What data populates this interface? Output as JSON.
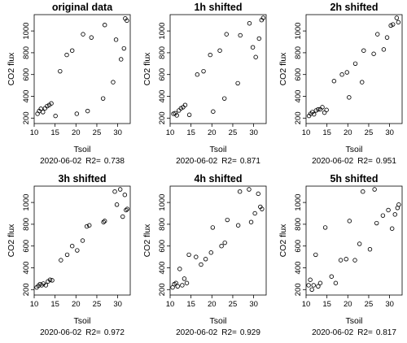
{
  "chart_data": [
    {
      "type": "scatter",
      "title": "original data",
      "xlabel": "Tsoil",
      "ylabel": "CO2 flux",
      "date": "2020-06-02",
      "r2_label": "R2=",
      "r2": "0.738",
      "xlim": [
        10,
        33
      ],
      "ylim": [
        150,
        1150
      ],
      "xticks": [
        10,
        15,
        20,
        25,
        30
      ],
      "yticks": [
        200,
        400,
        600,
        800,
        1000
      ],
      "x": [
        10.8,
        11.2,
        11.6,
        12.1,
        12.6,
        13.1,
        13.6,
        14.1,
        15.1,
        16.2,
        17.8,
        19.1,
        20.2,
        21.7,
        22.8,
        23.7,
        26.5,
        26.9,
        28.9,
        29.6,
        30.8,
        31.5,
        31.8,
        32.2
      ],
      "y": [
        240,
        265,
        285,
        255,
        290,
        310,
        320,
        335,
        220,
        630,
        780,
        820,
        240,
        970,
        265,
        940,
        380,
        1055,
        530,
        920,
        740,
        840,
        1115,
        1095
      ]
    },
    {
      "type": "scatter",
      "title": "1h shifted",
      "xlabel": "Tsoil",
      "ylabel": "CO2 flux",
      "date": "2020-06-02",
      "r2_label": "R2=",
      "r2": "0.871",
      "xlim": [
        10,
        33
      ],
      "ylim": [
        150,
        1150
      ],
      "xticks": [
        10,
        15,
        20,
        25,
        30
      ],
      "yticks": [
        200,
        400,
        600,
        800,
        1000
      ],
      "x": [
        10.8,
        11.2,
        11.6,
        12.1,
        12.6,
        13.1,
        13.6,
        14.6,
        16.5,
        18.0,
        19.6,
        20.3,
        21.9,
        23.5,
        23.0,
        26.2,
        26.8,
        29.0,
        29.8,
        30.5,
        31.3,
        31.9,
        32.3
      ],
      "y": [
        240,
        245,
        225,
        270,
        290,
        300,
        320,
        230,
        600,
        630,
        780,
        260,
        820,
        970,
        380,
        520,
        960,
        1070,
        850,
        760,
        930,
        1100,
        1120
      ]
    },
    {
      "type": "scatter",
      "title": "2h shifted",
      "xlabel": "Tsoil",
      "ylabel": "CO2 flux",
      "date": "2020-06-02",
      "r2_label": "R2=",
      "r2": "0.951",
      "xlim": [
        10,
        33
      ],
      "ylim": [
        150,
        1150
      ],
      "xticks": [
        10,
        15,
        20,
        25,
        30
      ],
      "yticks": [
        200,
        400,
        600,
        800,
        1000
      ],
      "x": [
        10.7,
        11.1,
        11.5,
        11.9,
        12.4,
        12.9,
        13.4,
        13.9,
        14.4,
        14.9,
        16.7,
        18.6,
        19.8,
        20.3,
        21.8,
        23.4,
        23.8,
        26.2,
        27.1,
        28.6,
        29.4,
        30.3,
        30.8,
        31.7,
        32.1
      ],
      "y": [
        220,
        240,
        255,
        235,
        270,
        280,
        280,
        300,
        250,
        275,
        540,
        600,
        620,
        390,
        700,
        530,
        820,
        790,
        970,
        830,
        940,
        1050,
        1060,
        1120,
        1080
      ]
    },
    {
      "type": "scatter",
      "title": "3h shifted",
      "xlabel": "Tsoil",
      "ylabel": "CO2 flux",
      "date": "2020-06-02",
      "r2_label": "R2=",
      "r2": "0.972",
      "xlim": [
        10,
        33
      ],
      "ylim": [
        150,
        1150
      ],
      "xticks": [
        10,
        15,
        20,
        25,
        30
      ],
      "yticks": [
        200,
        400,
        600,
        800,
        1000
      ],
      "x": [
        10.6,
        11.0,
        11.4,
        11.8,
        12.2,
        12.8,
        13.3,
        13.8,
        14.3,
        16.4,
        17.9,
        19.1,
        20.3,
        21.6,
        22.6,
        23.2,
        26.6,
        26.9,
        29.3,
        29.8,
        30.6,
        31.2,
        31.7,
        32.0,
        32.3
      ],
      "y": [
        220,
        235,
        250,
        240,
        255,
        240,
        275,
        290,
        285,
        470,
        520,
        600,
        560,
        650,
        780,
        790,
        820,
        830,
        1100,
        980,
        1120,
        870,
        1070,
        930,
        940
      ]
    },
    {
      "type": "scatter",
      "title": "4h shifted",
      "xlabel": "Tsoil",
      "ylabel": "CO2 flux",
      "date": "2020-06-02",
      "r2_label": "R2=",
      "r2": "0.929",
      "xlim": [
        10,
        33
      ],
      "ylim": [
        150,
        1150
      ],
      "xticks": [
        10,
        15,
        20,
        25,
        30
      ],
      "yticks": [
        200,
        400,
        600,
        800,
        1000
      ],
      "x": [
        10.6,
        11.0,
        11.4,
        11.8,
        12.3,
        12.9,
        13.4,
        14.0,
        14.5,
        16.2,
        17.4,
        18.5,
        19.8,
        20.2,
        22.3,
        23.1,
        23.7,
        26.3,
        26.7,
        28.9,
        29.4,
        30.3,
        31.1,
        31.6,
        32.0
      ],
      "y": [
        220,
        250,
        260,
        230,
        390,
        240,
        300,
        260,
        520,
        500,
        430,
        480,
        540,
        770,
        600,
        630,
        840,
        790,
        1100,
        1120,
        820,
        900,
        1080,
        960,
        940
      ]
    },
    {
      "type": "scatter",
      "title": "5h shifted",
      "xlabel": "Tsoil",
      "ylabel": "CO2 flux",
      "date": "2020-06-02",
      "r2_label": "R2=",
      "r2": "0.817",
      "xlim": [
        10,
        33
      ],
      "ylim": [
        150,
        1150
      ],
      "xticks": [
        10,
        15,
        20,
        25,
        30
      ],
      "yticks": [
        200,
        400,
        600,
        800,
        1000
      ],
      "x": [
        10.6,
        11.0,
        11.4,
        11.8,
        12.3,
        12.9,
        13.4,
        14.6,
        16.1,
        17.1,
        18.3,
        19.6,
        20.4,
        21.7,
        22.8,
        23.6,
        25.3,
        26.4,
        26.9,
        28.4,
        29.7,
        30.6,
        31.3,
        31.9,
        32.2
      ],
      "y": [
        240,
        290,
        200,
        240,
        520,
        230,
        260,
        770,
        320,
        260,
        470,
        480,
        830,
        470,
        620,
        1100,
        570,
        1120,
        810,
        880,
        930,
        760,
        890,
        950,
        980
      ]
    }
  ]
}
